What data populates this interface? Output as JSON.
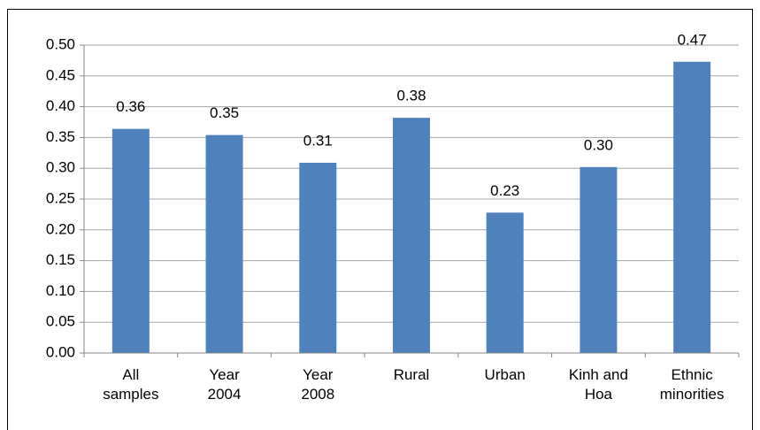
{
  "chart_data": {
    "type": "bar",
    "categories": [
      "All samples",
      "Year 2004",
      "Year 2008",
      "Rural",
      "Urban",
      "Kinh and Hoa",
      "Ethnic minorities"
    ],
    "values": [
      0.364,
      0.354,
      0.309,
      0.382,
      0.228,
      0.302,
      0.473
    ],
    "value_labels": [
      "0.36",
      "0.35",
      "0.31",
      "0.38",
      "0.23",
      "0.30",
      "0.47"
    ],
    "color": "#4f81bd",
    "ylim": [
      0,
      0.5
    ],
    "yticks": [
      {
        "value": 0,
        "label": "0.00"
      },
      {
        "value": 0.05,
        "label": "0.05"
      },
      {
        "value": 0.1,
        "label": "0.10"
      },
      {
        "value": 0.15,
        "label": "0.15"
      },
      {
        "value": 0.2,
        "label": "0.20"
      },
      {
        "value": 0.25,
        "label": "0.25"
      },
      {
        "value": 0.3,
        "label": "0.30"
      },
      {
        "value": 0.35,
        "label": "0.35"
      },
      {
        "value": 0.4,
        "label": "0.40"
      },
      {
        "value": 0.45,
        "label": "0.45"
      },
      {
        "value": 0.5,
        "label": "0.50"
      }
    ],
    "grid": true
  }
}
